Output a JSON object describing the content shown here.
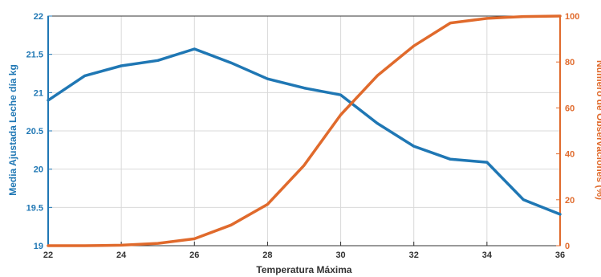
{
  "chart_data": {
    "type": "line",
    "xlabel": "Temperatura Máxima",
    "ylabel_left": "Media Ajustada Leche día kg",
    "ylabel_right": "Número de Observaciones (%)",
    "xlim": [
      22,
      36
    ],
    "ylim_left": [
      19,
      22
    ],
    "ylim_right": [
      0,
      100
    ],
    "x_ticks": [
      "22",
      "24",
      "26",
      "28",
      "30",
      "32",
      "34",
      "36"
    ],
    "y_left_ticks": [
      "19",
      "19.5",
      "20",
      "20.5",
      "21",
      "21.5",
      "22"
    ],
    "y_right_ticks": [
      "0",
      "20",
      "40",
      "60",
      "80",
      "100"
    ],
    "grid": true,
    "series": [
      {
        "axis": "left",
        "color": "#1f77b4",
        "x": [
          22,
          23,
          24,
          25,
          26,
          27,
          28,
          29,
          30,
          31,
          32,
          33,
          34,
          35,
          36
        ],
        "values": [
          20.9,
          21.22,
          21.35,
          21.42,
          21.57,
          21.39,
          21.18,
          21.06,
          20.97,
          20.6,
          20.3,
          20.13,
          20.09,
          19.6,
          19.41
        ]
      },
      {
        "axis": "right",
        "color": "#e06a2c",
        "x": [
          22,
          23,
          24,
          25,
          26,
          27,
          28,
          29,
          30,
          31,
          32,
          33,
          34,
          35,
          36
        ],
        "values": [
          0,
          0,
          0.2,
          1,
          3,
          9,
          18,
          35,
          57,
          74,
          87,
          97,
          99,
          99.8,
          100
        ]
      }
    ]
  }
}
